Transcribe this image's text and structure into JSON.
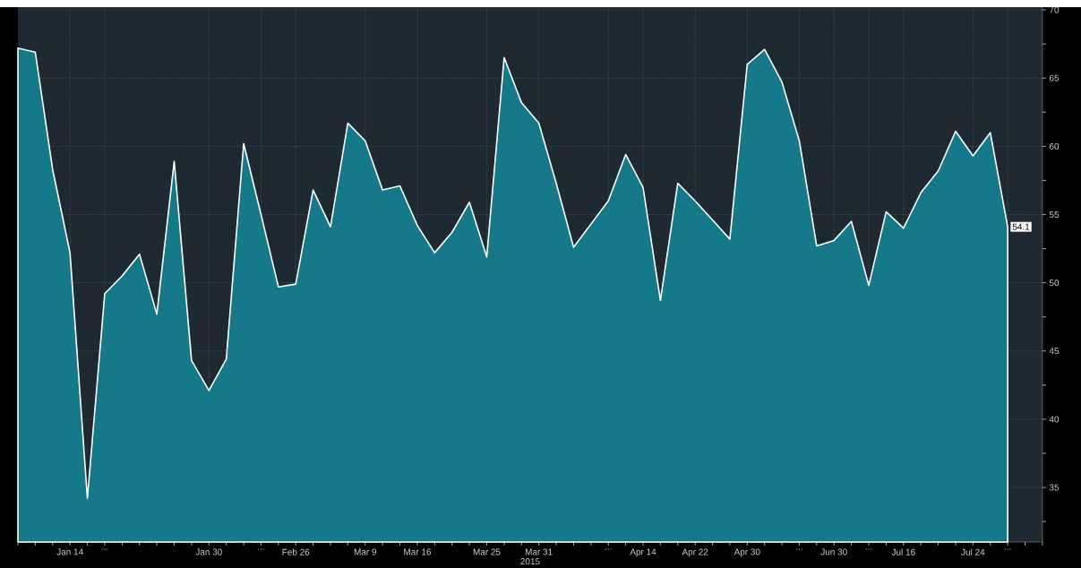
{
  "chart_data": {
    "type": "area",
    "xlabel": "2015",
    "categories": [
      null,
      null,
      null,
      "Jan 14",
      null,
      "...",
      null,
      null,
      null,
      null,
      null,
      "Jan 30",
      null,
      null,
      "...",
      null,
      "Feb 26",
      null,
      null,
      null,
      "Mar 9",
      null,
      null,
      "Mar 16",
      null,
      null,
      null,
      "Mar 25",
      null,
      null,
      "Mar 31",
      null,
      null,
      null,
      "...",
      null,
      "Apr 14",
      null,
      null,
      "Apr 22",
      null,
      null,
      "Apr 30",
      null,
      null,
      "...",
      null,
      "Jun 30",
      null,
      "...",
      null,
      "Jul 16",
      null,
      null,
      null,
      "Jul 24",
      null,
      "...",
      null,
      null
    ],
    "values": [
      67.2,
      66.9,
      58.3,
      52.2,
      34.2,
      49.2,
      50.5,
      52.1,
      47.7,
      58.9,
      44.3,
      42.1,
      44.4,
      60.2,
      55.0,
      49.7,
      49.9,
      56.8,
      54.1,
      61.7,
      60.4,
      56.8,
      57.1,
      54.2,
      52.2,
      53.7,
      55.9,
      51.9,
      66.5,
      63.2,
      61.7,
      57.3,
      52.6,
      54.3,
      56.0,
      59.4,
      57.0,
      48.7,
      57.3,
      56.0,
      54.6,
      53.2,
      66.0,
      67.1,
      64.7,
      60.4,
      52.7,
      53.1,
      54.5,
      49.8,
      55.2,
      54.0,
      56.6,
      58.2,
      61.1,
      59.3,
      61.0,
      54.1,
      null,
      null
    ],
    "value_labels": [
      null,
      null,
      null,
      null,
      null,
      null,
      null,
      null,
      null,
      null,
      null,
      null,
      null,
      null,
      null,
      null,
      null,
      null,
      null,
      null,
      null,
      null,
      null,
      null,
      null,
      null,
      null,
      null,
      null,
      null,
      null,
      null,
      null,
      null,
      null,
      null,
      null,
      null,
      null,
      null,
      null,
      null,
      null,
      null,
      null,
      null,
      null,
      null,
      null,
      null,
      null,
      null,
      null,
      null,
      null,
      null,
      null,
      "54.1",
      null,
      null
    ],
    "color": "#15798a",
    "ylim": [
      31,
      70.2
    ],
    "yticks": [
      {
        "value": 32.5,
        "label": null
      },
      35,
      {
        "value": 37.5,
        "label": null
      },
      40,
      {
        "value": 42.5,
        "label": null
      },
      45,
      {
        "value": 47.5,
        "label": null
      },
      50,
      {
        "value": 52.5,
        "label": null
      },
      55,
      {
        "value": 57.5,
        "label": null
      },
      60,
      {
        "value": 62.5,
        "label": null
      },
      65,
      {
        "value": 67.5,
        "label": null
      },
      70
    ],
    "grid": true
  }
}
